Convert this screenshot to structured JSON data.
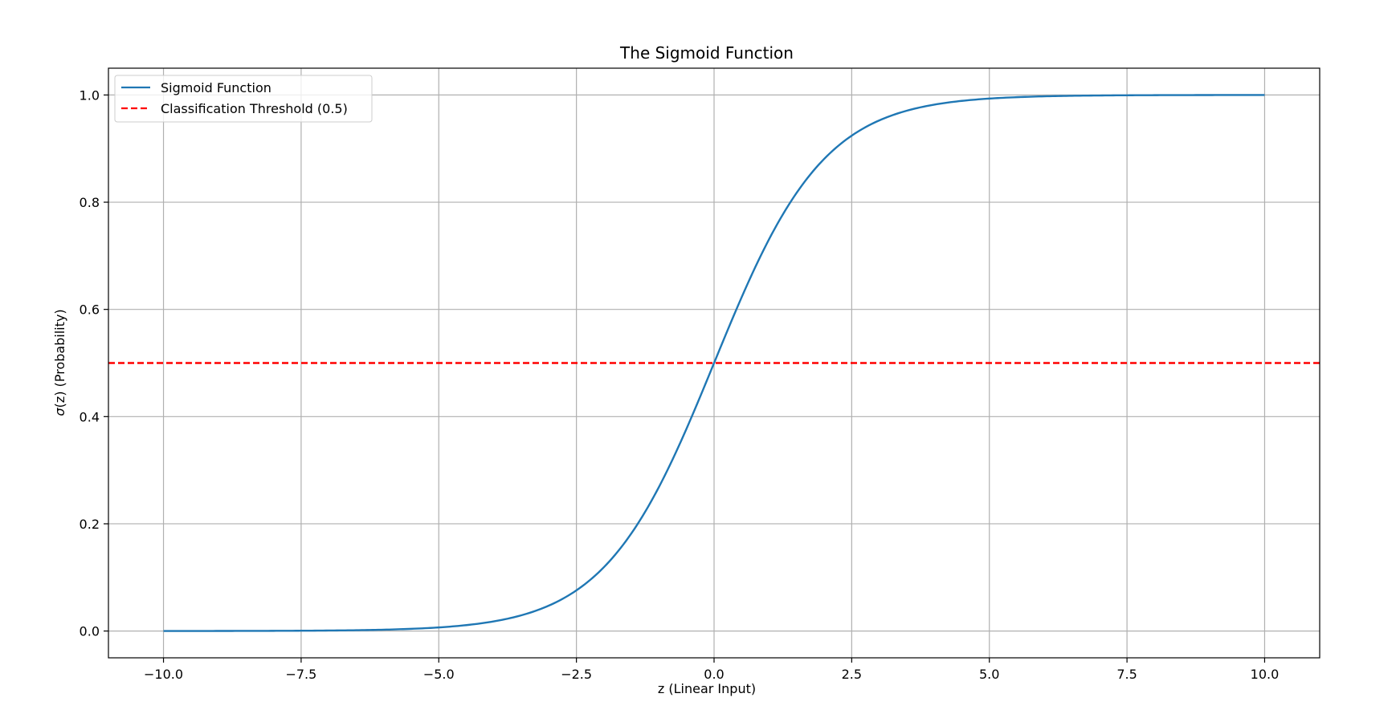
{
  "chart_data": {
    "type": "line",
    "title": "The Sigmoid Function",
    "xlabel": "z (Linear Input)",
    "ylabel_symbol": "σ",
    "ylabel_rest": "(z) (Probability)",
    "xlim": [
      -11.0,
      11.0
    ],
    "ylim": [
      -0.05,
      1.05
    ],
    "x_ticks": [
      -10.0,
      -7.5,
      -5.0,
      -2.5,
      0.0,
      2.5,
      5.0,
      7.5,
      10.0
    ],
    "x_tick_labels": [
      "−10.0",
      "−7.5",
      "−5.0",
      "−2.5",
      "0.0",
      "2.5",
      "5.0",
      "7.5",
      "10.0"
    ],
    "y_ticks": [
      0.0,
      0.2,
      0.4,
      0.6,
      0.8,
      1.0
    ],
    "y_tick_labels": [
      "0.0",
      "0.2",
      "0.4",
      "0.6",
      "0.8",
      "1.0"
    ],
    "grid": true,
    "legend_position": "top-left",
    "series": [
      {
        "name": "Sigmoid Function",
        "color": "#1f77b4",
        "style": "solid",
        "function": "sigmoid",
        "x_range": [
          -10.0,
          10.0
        ],
        "x": [
          -10,
          -8,
          -6,
          -5,
          -4,
          -3,
          -2.5,
          -2,
          -1.5,
          -1,
          -0.5,
          0,
          0.5,
          1,
          1.5,
          2,
          2.5,
          3,
          4,
          5,
          6,
          8,
          10
        ],
        "y": [
          0.0,
          0.0003,
          0.0025,
          0.0067,
          0.018,
          0.0474,
          0.0759,
          0.1192,
          0.1824,
          0.2689,
          0.3775,
          0.5,
          0.6225,
          0.7311,
          0.8176,
          0.8808,
          0.9241,
          0.9526,
          0.982,
          0.9933,
          0.9975,
          0.9997,
          1.0
        ]
      },
      {
        "name": "Classification Threshold (0.5)",
        "color": "#ff0000",
        "style": "dashed",
        "type": "hline",
        "y": 0.5
      }
    ]
  }
}
